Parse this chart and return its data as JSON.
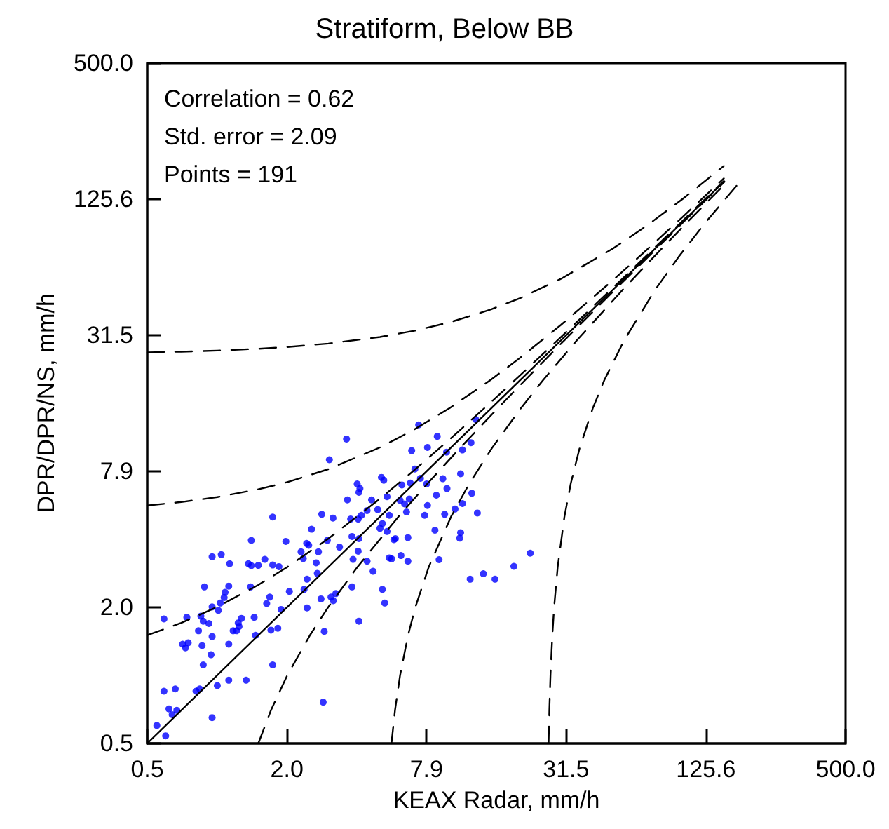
{
  "chart_data": {
    "type": "scatter",
    "title": "Stratiform, Below BB",
    "xlabel": "KEAX Radar, mm/h",
    "ylabel": "DPR/DPR/NS, mm/h",
    "annotations": [
      "Correlation = 0.62",
      "Std. error = 2.09",
      "Points = 191"
    ],
    "log": "xy",
    "xlim": [
      0.5,
      500
    ],
    "ylim": [
      0.5,
      500
    ],
    "xticks": [
      0.5,
      {
        "value": 1.99,
        "label": "2.0"
      },
      {
        "value": 7.92,
        "label": "7.9"
      },
      31.5,
      125.6,
      {
        "value": 500,
        "label": "500.0"
      }
    ],
    "yticks": [
      0.5,
      {
        "value": 1.99,
        "label": "2.0"
      },
      {
        "value": 7.92,
        "label": "7.9"
      },
      31.5,
      125.6,
      {
        "value": 500,
        "label": "500.0"
      }
    ],
    "marker": "circle",
    "series": [
      {
        "type": "scatter",
        "color": "#0000ff",
        "x": [
          0.55,
          0.6,
          0.59,
          0.62,
          0.64,
          0.66,
          0.67,
          0.59,
          0.71,
          0.73,
          0.75,
          0.74,
          0.81,
          0.84,
          0.83,
          0.85,
          0.87,
          0.86,
          0.87,
          0.88,
          0.92,
          0.94,
          0.95,
          0.95,
          0.95,
          0.95,
          1.0,
          1.01,
          1.04,
          1.03,
          1.07,
          1.08,
          1.12,
          1.13,
          1.12,
          1.12,
          1.17,
          1.21,
          1.23,
          1.24,
          1.27,
          1.33,
          1.36,
          1.39,
          1.4,
          1.4,
          1.44,
          1.46,
          1.5,
          1.6,
          1.63,
          1.68,
          1.7,
          1.73,
          1.73,
          1.73,
          1.82,
          1.84,
          1.88,
          1.97,
          2.04,
          2.29,
          2.36,
          2.34,
          2.42,
          2.47,
          2.43,
          2.43,
          2.54,
          2.66,
          2.69,
          2.72,
          2.81,
          2.79,
          2.88,
          2.85,
          2.97,
          3.03,
          3.08,
          3.14,
          3.15,
          3.23,
          3.35,
          3.59,
          3.62,
          3.74,
          3.79,
          3.83,
          3.79,
          4.06,
          3.99,
          4.03,
          4.1,
          4.06,
          4.16,
          4.06,
          4.03,
          4.4,
          4.4,
          4.6,
          4.67,
          4.89,
          5.0,
          5.07,
          5.12,
          5.19,
          5.24,
          5.12,
          5.36,
          5.48,
          5.61,
          5.36,
          5.48,
          5.74,
          5.82,
          6.1,
          6.15,
          6.21,
          6.38,
          6.59,
          6.59,
          6.68,
          6.5,
          6.75,
          6.84,
          7.06,
          7.33,
          12.9,
          12.3,
          11.3,
          11.1,
          12.4,
          11.3,
          13.1,
          10.5,
          11.1,
          11.0,
          9.66,
          9.7,
          9.31,
          8.73,
          9.48,
          8.61,
          8.97,
          8.81,
          8.0,
          8.0,
          7.93,
          7.78,
          7.46,
          12.2,
          13.9,
          15.6,
          18.8,
          22.1
        ],
        "values": [
          0.6,
          0.54,
          0.85,
          0.71,
          0.67,
          0.87,
          0.7,
          1.77,
          1.37,
          1.32,
          1.39,
          1.8,
          0.85,
          0.87,
          1.57,
          1.82,
          1.73,
          1.35,
          1.11,
          2.45,
          1.69,
          1.23,
          1.48,
          2.0,
          3.33,
          0.65,
          0.9,
          1.93,
          3.4,
          2.08,
          2.2,
          2.32,
          2.47,
          3.1,
          0.95,
          1.37,
          1.57,
          1.57,
          1.7,
          1.64,
          1.78,
          0.95,
          3.1,
          2.45,
          3.04,
          3.93,
          1.8,
          1.5,
          3.05,
          3.24,
          2.07,
          2.21,
          1.58,
          4.98,
          1.11,
          3.06,
          1.61,
          3.01,
          1.95,
          3.89,
          2.34,
          3.5,
          2.39,
          3.27,
          3.81,
          3.74,
          1.98,
          2.65,
          4.4,
          3.13,
          2.81,
          3.5,
          5.12,
          2.17,
          1.56,
          0.76,
          3.93,
          8.91,
          2.21,
          4.93,
          2.13,
          2.29,
          3.67,
          11.0,
          5.93,
          4.88,
          4.09,
          3.24,
          2.45,
          1.73,
          6.97,
          4.88,
          6.65,
          6.4,
          5.07,
          4.0,
          3.52,
          3.18,
          5.32,
          5.93,
          2.87,
          5.37,
          4.44,
          7.45,
          2.39,
          7.24,
          2.08,
          4.66,
          6.12,
          3.29,
          3.26,
          4.3,
          5.07,
          3.96,
          4.0,
          5.9,
          3.37,
          6.9,
          5.69,
          4.04,
          3.18,
          5.98,
          5.24,
          7.03,
          9.77,
          8.11,
          12.7,
          13.4,
          10.6,
          9.84,
          7.73,
          6.34,
          5.71,
          5.19,
          5.4,
          4.25,
          4.02,
          9.62,
          6.65,
          7.35,
          6.22,
          5.12,
          4.36,
          3.23,
          11.3,
          10.1,
          5.6,
          6.97,
          5.07,
          7.38,
          2.65,
          2.8,
          2.65,
          3.02,
          3.45
        ]
      },
      {
        "type": "line",
        "color": "#000000",
        "marker": "none",
        "line_style": "solid",
        "x": [
          0.5,
          150
        ],
        "values": [
          0.5,
          150
        ]
      },
      {
        "type": "line",
        "color": "#000000",
        "marker": "none",
        "line_style": "dashed",
        "x": [
          0.5,
          0.7,
          1,
          1.5,
          2,
          3,
          5,
          7,
          10,
          15,
          20,
          30,
          50,
          70,
          100,
          150
        ],
        "values": [
          1.5,
          1.7,
          2,
          2.5,
          3,
          4,
          6,
          8,
          11,
          16,
          21,
          31,
          51,
          71,
          101,
          151
        ]
      },
      {
        "type": "line",
        "color": "#000000",
        "marker": "none",
        "line_style": "dashed",
        "x": [
          1.5,
          1.7,
          2,
          2.5,
          3,
          4,
          6,
          8,
          11,
          16,
          21,
          31,
          51,
          71,
          101,
          151
        ],
        "values": [
          0.5,
          0.7,
          1,
          1.5,
          2,
          3,
          5,
          7,
          10,
          15,
          20,
          30,
          50,
          70,
          100,
          150
        ]
      },
      {
        "type": "line",
        "color": "#000000",
        "marker": "none",
        "line_style": "dashed",
        "x": [
          0.5,
          0.7,
          1,
          1.5,
          2,
          3,
          5,
          7,
          10,
          15,
          20,
          30,
          50,
          70,
          100,
          150
        ],
        "values": [
          5.6,
          5.8,
          6.1,
          6.6,
          7.1,
          8.1,
          10.1,
          12.1,
          15.1,
          20.1,
          25.1,
          35.1,
          55.1,
          75.1,
          105.1,
          155.1
        ]
      },
      {
        "type": "line",
        "color": "#000000",
        "marker": "none",
        "line_style": "dashed",
        "x": [
          5.6,
          5.8,
          6.1,
          6.6,
          7.1,
          8.1,
          10.1,
          12.1,
          15.1,
          20.1,
          25.1,
          35.1,
          55.1,
          75.1,
          105.1,
          155.1
        ],
        "values": [
          0.5,
          0.7,
          1,
          1.5,
          2,
          3,
          5,
          7,
          10,
          15,
          20,
          30,
          50,
          70,
          100,
          150
        ]
      },
      {
        "type": "line",
        "color": "#000000",
        "marker": "none",
        "line_style": "dashed",
        "x": [
          0.5,
          0.7,
          1,
          1.5,
          2,
          3,
          5,
          7,
          10,
          15,
          20,
          30,
          50,
          70,
          100,
          150
        ],
        "values": [
          26.5,
          26.7,
          27,
          27.5,
          28,
          29,
          31,
          33,
          36,
          41,
          46,
          56,
          76,
          96,
          126,
          176
        ]
      },
      {
        "type": "line",
        "color": "#000000",
        "marker": "none",
        "line_style": "dashed",
        "x": [
          26.5,
          26.7,
          27,
          27.5,
          28,
          29,
          31,
          33,
          36,
          41,
          46,
          56,
          76,
          96,
          126,
          176
        ],
        "values": [
          0.5,
          0.7,
          1,
          1.5,
          2,
          3,
          5,
          7,
          10,
          15,
          20,
          30,
          50,
          70,
          100,
          150
        ]
      }
    ]
  }
}
